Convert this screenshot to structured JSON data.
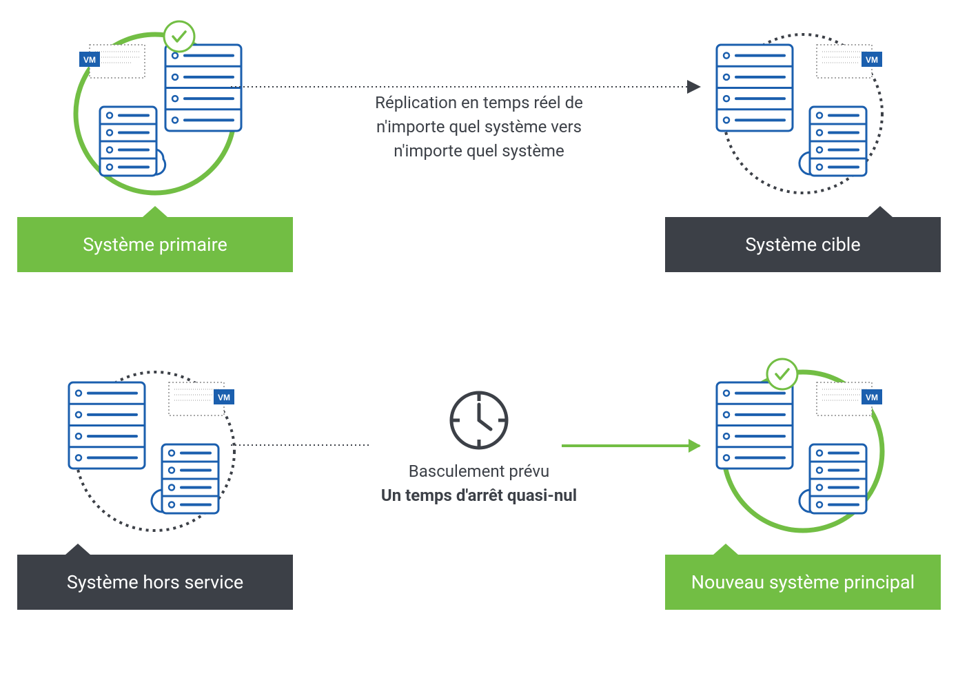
{
  "colors": {
    "green": "#72be44",
    "dark": "#3c4047",
    "blue": "#1b5fae",
    "gray_text": "#3c4047",
    "light_gray": "#888888",
    "white": "#ffffff"
  },
  "row1": {
    "left": {
      "label": "Système primaire",
      "label_color": "green",
      "circle_color": "green",
      "has_check": true,
      "vm_position": "left",
      "primary_server_position": "right"
    },
    "right": {
      "label": "Système cible",
      "label_color": "dark",
      "circle_color": "dark",
      "circle_dotted": true,
      "has_check": false,
      "vm_position": "right",
      "primary_server_position": "left"
    },
    "middle_text": "Réplication en temps réel de\nn'importe quel système vers\nn'importe quel système"
  },
  "row2": {
    "left": {
      "label": "Système hors service",
      "label_color": "dark",
      "circle_color": "dark",
      "circle_dotted": true,
      "has_check": false,
      "vm_position": "right",
      "primary_server_position": "left"
    },
    "right": {
      "label": "Nouveau système principal",
      "label_color": "green",
      "circle_color": "green",
      "has_check": true,
      "vm_position": "right",
      "primary_server_position": "left"
    },
    "middle_text_line1": "Basculement prévu",
    "middle_text_line2": "Un temps d'arrêt quasi-nul",
    "has_clock": true
  },
  "vm_label": "VM"
}
